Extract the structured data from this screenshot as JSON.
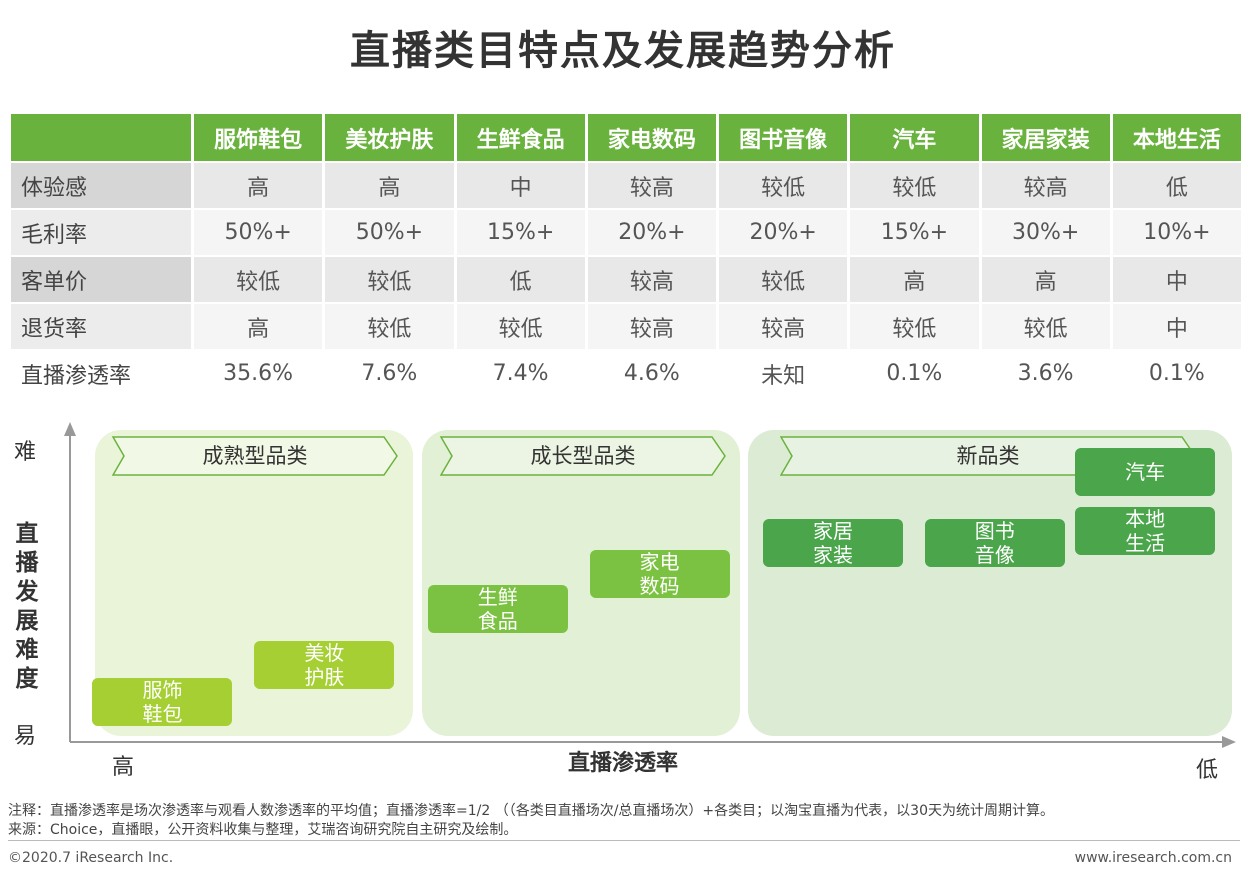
{
  "title": "直播类目特点及发展趋势分析",
  "table": {
    "columns": [
      "服饰鞋包",
      "美妆护肤",
      "生鲜食品",
      "家电数码",
      "图书音像",
      "汽车",
      "家居家装",
      "本地生活"
    ],
    "rows": [
      {
        "label": "体验感",
        "values": [
          "高",
          "高",
          "中",
          "较高",
          "较低",
          "较低",
          "较高",
          "低"
        ]
      },
      {
        "label": "毛利率",
        "values": [
          "50%+",
          "50%+",
          "15%+",
          "20%+",
          "20%+",
          "15%+",
          "30%+",
          "10%+"
        ]
      },
      {
        "label": "客单价",
        "values": [
          "较低",
          "较低",
          "低",
          "较高",
          "较低",
          "高",
          "高",
          "中"
        ]
      },
      {
        "label": "退货率",
        "values": [
          "高",
          "较低",
          "较低",
          "较高",
          "较高",
          "较低",
          "较低",
          "中"
        ]
      },
      {
        "label": "直播渗透率",
        "values": [
          "35.6%",
          "7.6%",
          "7.4%",
          "4.6%",
          "未知",
          "0.1%",
          "3.6%",
          "0.1%"
        ]
      }
    ]
  },
  "chart_data": {
    "type": "scatter",
    "xlabel": "直播渗透率",
    "ylabel": "直播发展难度",
    "x_high_label": "高",
    "x_low_label": "低",
    "y_high_label": "难",
    "y_low_label": "易",
    "zones": [
      {
        "name": "成熟型品类",
        "color": "#eaf4d8"
      },
      {
        "name": "成长型品类",
        "color": "#e2f0d5"
      },
      {
        "name": "新品类",
        "color": "#dcebd3"
      }
    ],
    "categories": [
      {
        "name": "服饰\n鞋包",
        "zone": 0,
        "x": 0.08,
        "y": 0.05,
        "color": "#a5cf32"
      },
      {
        "name": "美妆\n护肤",
        "zone": 0,
        "x": 0.22,
        "y": 0.17,
        "color": "#a5cf32"
      },
      {
        "name": "生鲜\n食品",
        "zone": 1,
        "x": 0.37,
        "y": 0.35,
        "color": "#7cc242"
      },
      {
        "name": "家电\n数码",
        "zone": 1,
        "x": 0.51,
        "y": 0.46,
        "color": "#7cc242"
      },
      {
        "name": "家居\n家装",
        "zone": 2,
        "x": 0.66,
        "y": 0.56,
        "color": "#4aa54b"
      },
      {
        "name": "图书\n音像",
        "zone": 2,
        "x": 0.8,
        "y": 0.56,
        "color": "#4aa54b"
      },
      {
        "name": "本地\n生活",
        "zone": 2,
        "x": 0.93,
        "y": 0.6,
        "color": "#4aa54b"
      },
      {
        "name": "汽车",
        "zone": 2,
        "x": 0.93,
        "y": 0.79,
        "color": "#4aa54b"
      }
    ]
  },
  "note": "注释：直播渗透率是场次渗透率与观看人数渗透率的平均值；直播渗透率=1/2 （（各类目直播场次/总直播场次）+各类目；以淘宝直播为代表，以30天为统计周期计算。",
  "source": "来源：Choice，直播眼，公开资料收集与整理，艾瑞咨询研究院自主研究及绘制。",
  "copyright": "©2020.7 iResearch Inc.",
  "website": "www.iresearch.com.cn"
}
